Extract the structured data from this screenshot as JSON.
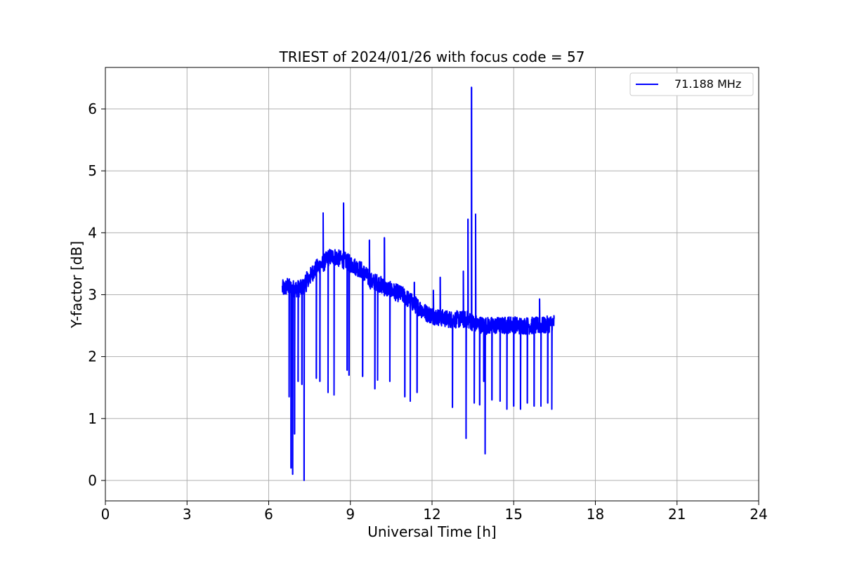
{
  "chart_data": {
    "type": "line",
    "title": "TRIEST of 2024/01/26 with focus code = 57",
    "xlabel": "Universal Time [h]",
    "ylabel": "Y-factor [dB]",
    "xlim": [
      0,
      24
    ],
    "ylim": [
      -0.33,
      6.67
    ],
    "xticks": [
      "0",
      "3",
      "6",
      "9",
      "12",
      "15",
      "18",
      "21",
      "24"
    ],
    "yticks": [
      "0",
      "1",
      "2",
      "3",
      "4",
      "5",
      "6"
    ],
    "grid": true,
    "legend_position": "top-right",
    "series": [
      {
        "name": "71.188 MHz",
        "color": "#0000ff",
        "x": [
          6.5,
          6.6,
          6.7,
          6.8,
          6.9,
          7.0,
          7.2,
          7.4,
          7.6,
          7.8,
          8.0,
          8.2,
          8.4,
          8.6,
          8.8,
          9.0,
          9.2,
          9.4,
          9.6,
          9.8,
          10.0,
          10.3,
          10.6,
          10.9,
          11.2,
          11.5,
          11.8,
          12.1,
          12.4,
          12.7,
          13.0,
          13.3,
          13.5,
          13.7,
          14.0,
          14.3,
          14.6,
          14.9,
          15.2,
          15.5,
          15.8,
          16.1,
          16.5
        ],
        "y": [
          3.1,
          3.1,
          3.15,
          3.1,
          3.1,
          3.1,
          3.1,
          3.2,
          3.35,
          3.45,
          3.5,
          3.6,
          3.62,
          3.58,
          3.55,
          3.5,
          3.45,
          3.4,
          3.3,
          3.2,
          3.2,
          3.1,
          3.05,
          3.0,
          2.9,
          2.8,
          2.7,
          2.65,
          2.62,
          2.6,
          2.6,
          2.6,
          2.55,
          2.52,
          2.5,
          2.5,
          2.5,
          2.52,
          2.5,
          2.5,
          2.5,
          2.5,
          2.55
        ],
        "spikes": [
          {
            "x": 6.75,
            "y": 1.35
          },
          {
            "x": 6.82,
            "y": 0.2
          },
          {
            "x": 6.88,
            "y": 0.1
          },
          {
            "x": 6.95,
            "y": 0.75
          },
          {
            "x": 7.08,
            "y": 1.6
          },
          {
            "x": 7.22,
            "y": 1.55
          },
          {
            "x": 7.3,
            "y": 0.0
          },
          {
            "x": 7.4,
            "y": 3.37
          },
          {
            "x": 7.75,
            "y": 1.65
          },
          {
            "x": 7.88,
            "y": 1.6
          },
          {
            "x": 8.0,
            "y": 4.32
          },
          {
            "x": 8.18,
            "y": 1.42
          },
          {
            "x": 8.4,
            "y": 1.38
          },
          {
            "x": 8.75,
            "y": 4.48
          },
          {
            "x": 8.88,
            "y": 1.78
          },
          {
            "x": 8.95,
            "y": 1.7
          },
          {
            "x": 9.45,
            "y": 1.68
          },
          {
            "x": 9.7,
            "y": 3.88
          },
          {
            "x": 9.9,
            "y": 1.48
          },
          {
            "x": 10.0,
            "y": 1.62
          },
          {
            "x": 10.25,
            "y": 3.92
          },
          {
            "x": 10.45,
            "y": 1.6
          },
          {
            "x": 11.0,
            "y": 1.35
          },
          {
            "x": 11.2,
            "y": 1.28
          },
          {
            "x": 11.35,
            "y": 3.2
          },
          {
            "x": 11.45,
            "y": 1.42
          },
          {
            "x": 12.05,
            "y": 3.07
          },
          {
            "x": 12.3,
            "y": 3.28
          },
          {
            "x": 12.75,
            "y": 1.18
          },
          {
            "x": 13.15,
            "y": 3.38
          },
          {
            "x": 13.25,
            "y": 0.68
          },
          {
            "x": 13.32,
            "y": 4.22
          },
          {
            "x": 13.45,
            "y": 6.35
          },
          {
            "x": 13.55,
            "y": 1.25
          },
          {
            "x": 13.6,
            "y": 4.3
          },
          {
            "x": 13.75,
            "y": 1.22
          },
          {
            "x": 13.9,
            "y": 1.6
          },
          {
            "x": 13.95,
            "y": 0.43
          },
          {
            "x": 14.2,
            "y": 1.3
          },
          {
            "x": 14.5,
            "y": 1.28
          },
          {
            "x": 14.75,
            "y": 1.15
          },
          {
            "x": 15.0,
            "y": 1.2
          },
          {
            "x": 15.25,
            "y": 1.15
          },
          {
            "x": 15.5,
            "y": 1.25
          },
          {
            "x": 15.75,
            "y": 1.2
          },
          {
            "x": 15.95,
            "y": 2.93
          },
          {
            "x": 16.0,
            "y": 1.2
          },
          {
            "x": 16.25,
            "y": 1.25
          },
          {
            "x": 16.4,
            "y": 1.15
          }
        ]
      }
    ]
  }
}
